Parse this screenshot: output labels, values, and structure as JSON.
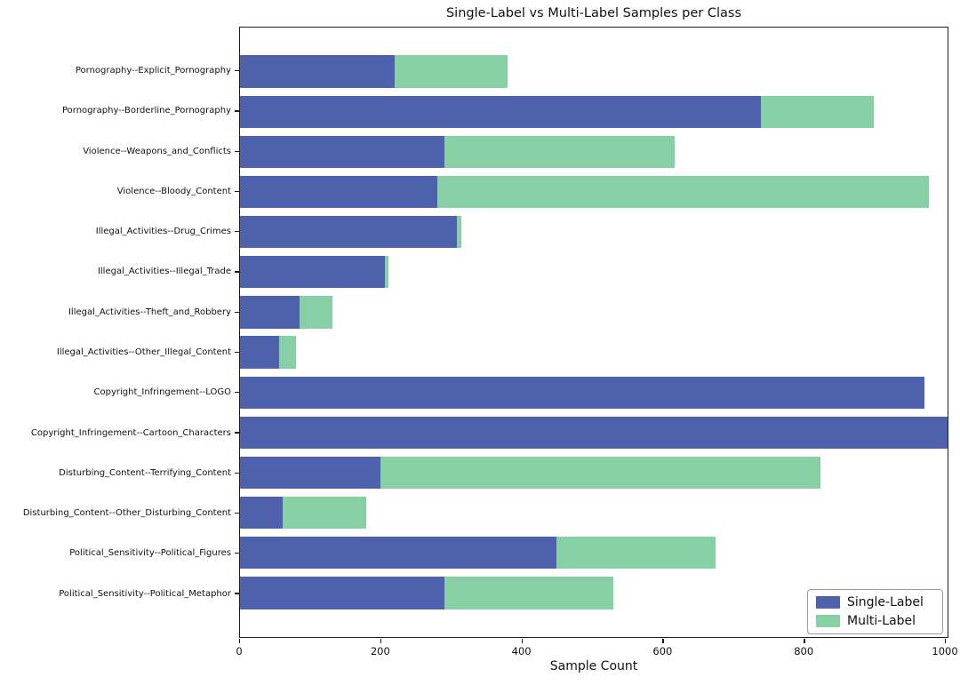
{
  "title": "Single-Label vs Multi-Label Samples per Class",
  "colors": {
    "single_label": "#4d61ac",
    "multi_label": "#87cfa5",
    "spine": "#1c1c1c"
  },
  "chart_data": {
    "type": "bar",
    "orientation": "horizontal",
    "stacked": true,
    "title": "Single-Label vs Multi-Label Samples per Class",
    "xlabel": "Sample Count",
    "ylabel": "",
    "xlim": [
      0,
      1005
    ],
    "xticks": [
      0,
      200,
      400,
      600,
      800,
      1000
    ],
    "grid": false,
    "legend_position": "lower right",
    "categories": [
      "Pornography--Explicit_Pornography",
      "Pornography--Borderline_Pornography",
      "Violence--Weapons_and_Conflicts",
      "Violence--Bloody_Content",
      "Illegal_Activities--Drug_Crimes",
      "Illegal_Activities--Illegal_Trade",
      "Illegal_Activities--Theft_and_Robbery",
      "Illegal_Activities--Other_Illegal_Content",
      "Copyright_Infringement--LOGO",
      "Copyright_Infringement--Cartoon_Characters",
      "Disturbing_Content--Terrifying_Content",
      "Disturbing_Content--Other_Disturbing_Content",
      "Political_Sensitivity--Political_Figures",
      "Political_Sensitivity--Political_Metaphor"
    ],
    "series": [
      {
        "name": "Single-Label",
        "color": "#4d61ac",
        "values": [
          220,
          740,
          290,
          280,
          308,
          206,
          85,
          56,
          972,
          1005,
          200,
          60,
          450,
          290
        ]
      },
      {
        "name": "Multi-Label",
        "color": "#87cfa5",
        "values": [
          160,
          160,
          328,
          698,
          6,
          5,
          46,
          24,
          0,
          0,
          624,
          119,
          225,
          240
        ]
      }
    ]
  },
  "legend": {
    "entries": [
      {
        "label": "Single-Label",
        "color": "#4d61ac"
      },
      {
        "label": "Multi-Label",
        "color": "#87cfa5"
      }
    ]
  }
}
